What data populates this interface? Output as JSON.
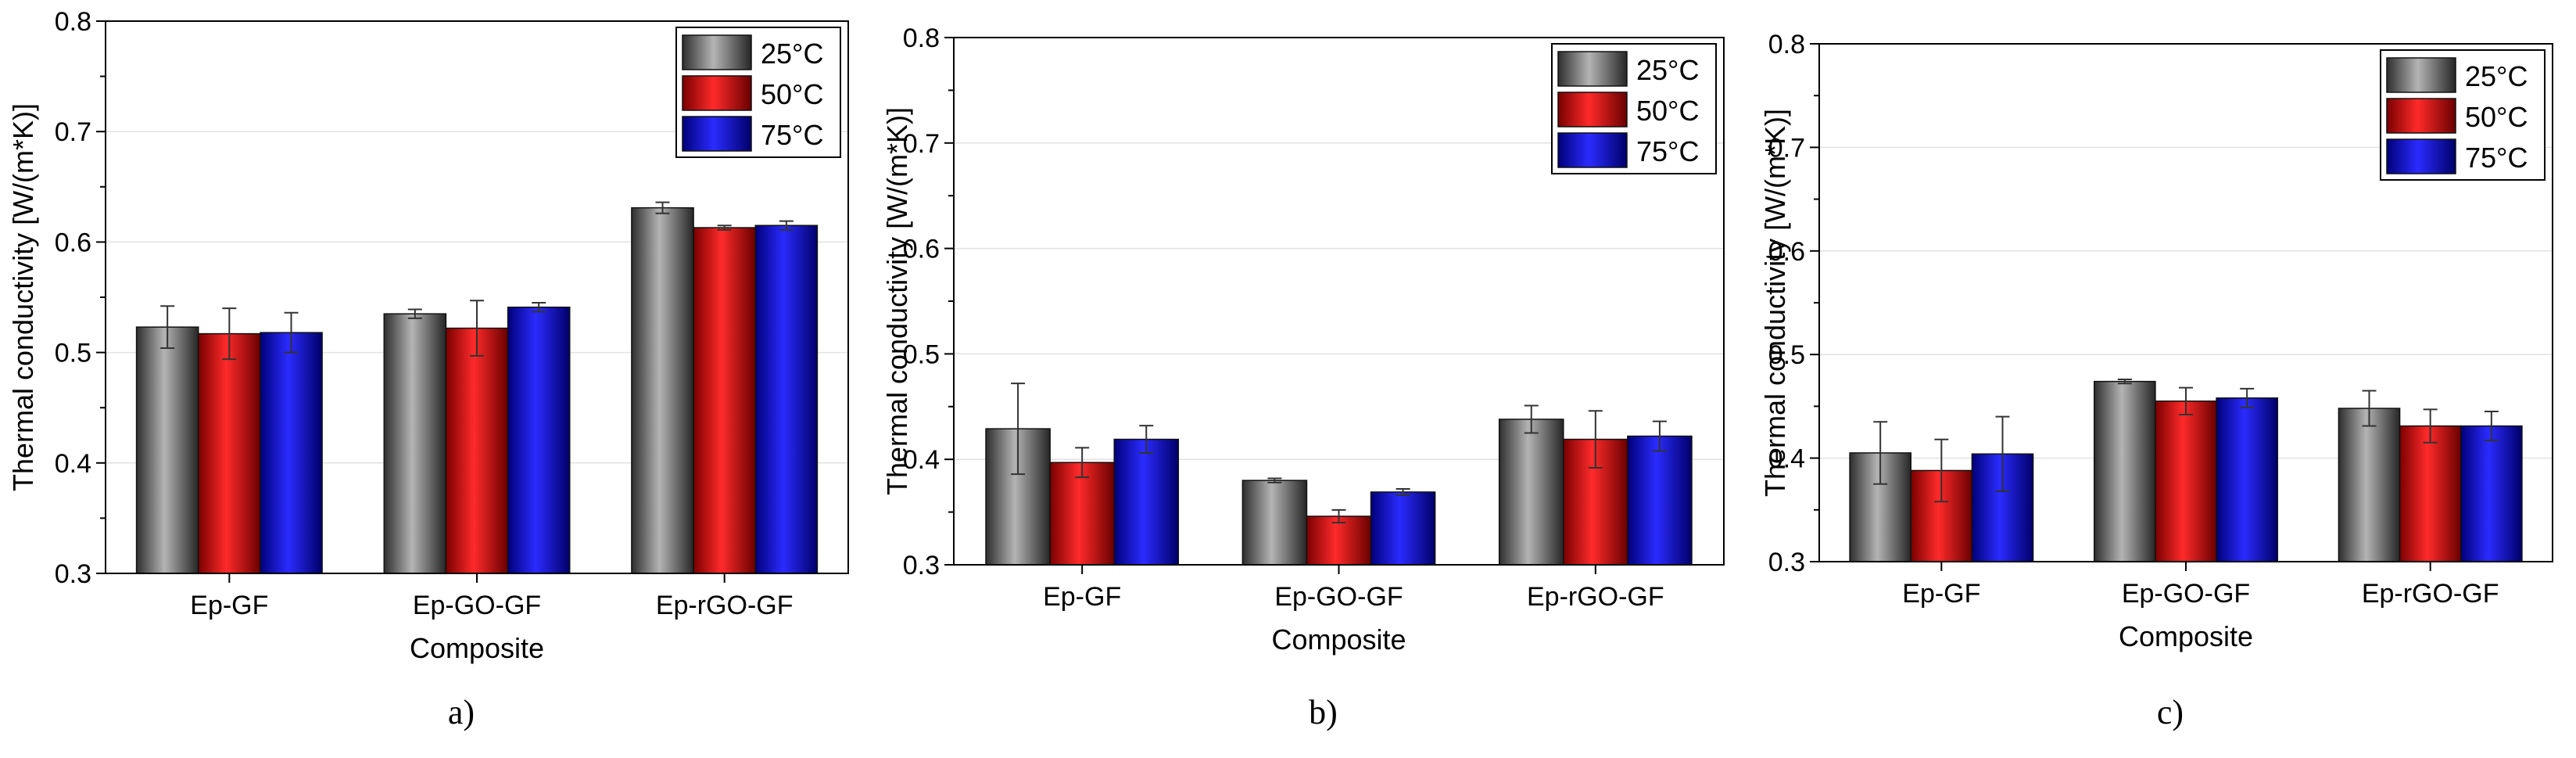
{
  "figure": {
    "panels": [
      "a)",
      "b)",
      "c)"
    ]
  },
  "colors": {
    "s25": "#6e6e6e",
    "s50": "#e00000",
    "s75": "#1010e0"
  },
  "chart_data": [
    {
      "type": "bar",
      "panel_label": "a)",
      "title": "",
      "xlabel": "Composite",
      "ylabel": "Thermal conductivity [W/(m*K)]",
      "categories": [
        "Ep-GF",
        "Ep-GO-GF",
        "Ep-rGO-GF"
      ],
      "ylim": [
        0.3,
        0.8
      ],
      "yticks": [
        "0.3",
        "0.4",
        "0.5",
        "0.6",
        "0.7",
        "0.8"
      ],
      "legend_position": "top-right",
      "series": [
        {
          "name": "25°C",
          "values": [
            0.523,
            0.535,
            0.631
          ],
          "errors": [
            0.019,
            0.004,
            0.005
          ]
        },
        {
          "name": "50°C",
          "values": [
            0.517,
            0.522,
            0.613
          ],
          "errors": [
            0.023,
            0.025,
            0.002
          ]
        },
        {
          "name": "75°C",
          "values": [
            0.518,
            0.541,
            0.615
          ],
          "errors": [
            0.018,
            0.004,
            0.004
          ]
        }
      ]
    },
    {
      "type": "bar",
      "panel_label": "b)",
      "title": "",
      "xlabel": "Composite",
      "ylabel": "Thermal conductivity [W/(m*K)]",
      "categories": [
        "Ep-GF",
        "Ep-GO-GF",
        "Ep-rGO-GF"
      ],
      "ylim": [
        0.3,
        0.8
      ],
      "yticks": [
        "0.3",
        "0.4",
        "0.5",
        "0.6",
        "0.7",
        "0.8"
      ],
      "legend_position": "top-right",
      "series": [
        {
          "name": "25°C",
          "values": [
            0.429,
            0.38,
            0.438
          ],
          "errors": [
            0.043,
            0.002,
            0.013
          ]
        },
        {
          "name": "50°C",
          "values": [
            0.397,
            0.346,
            0.419
          ],
          "errors": [
            0.014,
            0.006,
            0.027
          ]
        },
        {
          "name": "75°C",
          "values": [
            0.419,
            0.369,
            0.422
          ],
          "errors": [
            0.013,
            0.003,
            0.014
          ]
        }
      ]
    },
    {
      "type": "bar",
      "panel_label": "c)",
      "title": "",
      "xlabel": "Composite",
      "ylabel": "Thermal conductivity [W/(m*K)]",
      "categories": [
        "Ep-GF",
        "Ep-GO-GF",
        "Ep-rGO-GF"
      ],
      "ylim": [
        0.3,
        0.8
      ],
      "yticks": [
        "0.3",
        "0.4",
        "0.5",
        "0.6",
        "0.7",
        "0.8"
      ],
      "legend_position": "top-right",
      "series": [
        {
          "name": "25°C",
          "values": [
            0.405,
            0.474,
            0.448
          ],
          "errors": [
            0.03,
            0.002,
            0.017
          ]
        },
        {
          "name": "50°C",
          "values": [
            0.388,
            0.455,
            0.431
          ],
          "errors": [
            0.03,
            0.013,
            0.016
          ]
        },
        {
          "name": "75°C",
          "values": [
            0.404,
            0.458,
            0.431
          ],
          "errors": [
            0.036,
            0.009,
            0.014
          ]
        }
      ]
    }
  ]
}
